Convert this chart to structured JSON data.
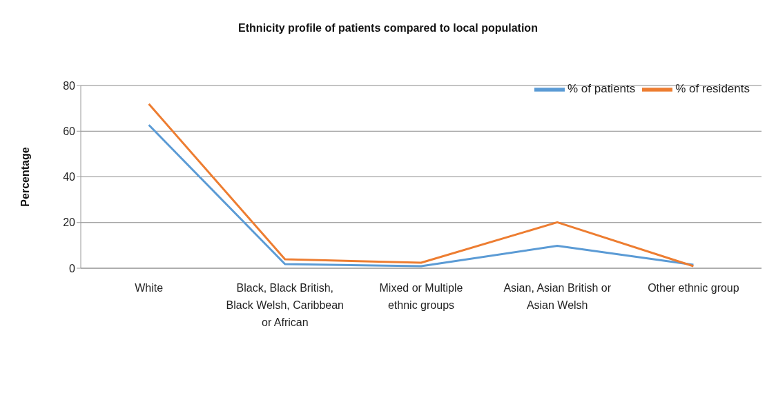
{
  "chart_data": {
    "type": "line",
    "title": "Ethnicity profile of patients compared to local population",
    "ylabel": "Percentage",
    "categories": [
      "White",
      "Black, Black British, Black Welsh, Caribbean or African",
      "Mixed or Multiple ethnic groups",
      "Asian, Asian British or Asian Welsh",
      "Other ethnic group"
    ],
    "series": [
      {
        "name": "% of patients",
        "color": "#5b9bd5",
        "values": [
          62.7,
          1.8,
          0.9,
          9.8,
          1.5
        ]
      },
      {
        "name": "% of residents",
        "color": "#ed7d31",
        "values": [
          71.9,
          3.9,
          2.4,
          20.1,
          0.9
        ]
      }
    ],
    "ylim": [
      0,
      80
    ],
    "yticks": [
      0,
      20,
      40,
      60,
      80
    ],
    "grid": "y",
    "legend": "top right",
    "marker": "none",
    "line_style": "solid"
  }
}
